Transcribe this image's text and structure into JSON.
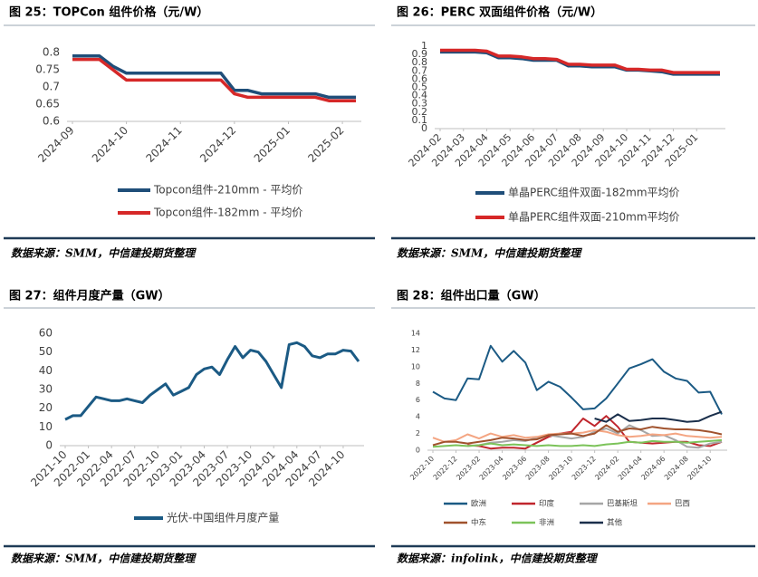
{
  "chart_data": [
    {
      "type": "line",
      "title": "图 25：TOPCon 组件价格（元/W）",
      "source": "数据来源：SMM，中信建投期货整理",
      "categories": [
        "2024-09",
        null,
        null,
        null,
        "2024-10",
        null,
        null,
        null,
        "2024-11",
        null,
        null,
        null,
        "2024-12",
        null,
        null,
        null,
        "2025-01",
        null,
        null,
        null,
        "2025-02",
        null
      ],
      "series": [
        {
          "name": "Topcon组件-210mm - 平均价",
          "color": "#1f4e79",
          "values": [
            0.79,
            0.79,
            0.79,
            0.76,
            0.74,
            0.74,
            0.74,
            0.74,
            0.74,
            0.74,
            0.74,
            0.74,
            0.69,
            0.69,
            0.68,
            0.68,
            0.68,
            0.68,
            0.68,
            0.67,
            0.67,
            0.67
          ]
        },
        {
          "name": "Topcon组件-182mm - 平均价",
          "color": "#d62828",
          "values": [
            0.78,
            0.78,
            0.78,
            0.75,
            0.72,
            0.72,
            0.72,
            0.72,
            0.72,
            0.72,
            0.72,
            0.72,
            0.68,
            0.67,
            0.67,
            0.67,
            0.67,
            0.67,
            0.67,
            0.66,
            0.66,
            0.66
          ]
        }
      ],
      "ylim": [
        0.6,
        0.8
      ],
      "yticks": [
        0.6,
        0.65,
        0.7,
        0.75,
        0.8
      ]
    },
    {
      "type": "line",
      "title": "图 26：PERC 双面组件价格（元/W）",
      "source": "数据来源：SMM，中信建投期货整理",
      "categories": [
        "2024-02",
        null,
        "2024-03",
        null,
        "2024-04",
        null,
        "2024-05",
        null,
        "2024-06",
        null,
        "2024-07",
        null,
        "2024-08",
        null,
        "2024-09",
        null,
        "2024-10",
        null,
        "2024-11",
        null,
        "2024-12",
        null,
        "2025-01",
        null,
        null
      ],
      "series": [
        {
          "name": "单晶PERC组件双面-182mm平均价",
          "color": "#1f4e79",
          "values": [
            0.93,
            0.93,
            0.93,
            0.93,
            0.92,
            0.86,
            0.86,
            0.85,
            0.83,
            0.83,
            0.83,
            0.76,
            0.76,
            0.75,
            0.75,
            0.75,
            0.71,
            0.71,
            0.7,
            0.69,
            0.66,
            0.66,
            0.66,
            0.66,
            0.66
          ]
        },
        {
          "name": "单晶PERC组件双面-210mm平均价",
          "color": "#d62828",
          "values": [
            0.95,
            0.95,
            0.95,
            0.95,
            0.94,
            0.88,
            0.88,
            0.87,
            0.85,
            0.85,
            0.84,
            0.78,
            0.78,
            0.77,
            0.77,
            0.77,
            0.72,
            0.72,
            0.71,
            0.71,
            0.68,
            0.68,
            0.68,
            0.68,
            0.68
          ]
        }
      ],
      "ylim": [
        0,
        1
      ],
      "yticks": [
        0,
        0.1,
        0.2,
        0.3,
        0.4,
        0.5,
        0.6,
        0.7,
        0.8,
        0.9,
        1
      ]
    },
    {
      "type": "line",
      "title": "图 27：组件月度产量（GW）",
      "source": "数据来源：SMM，中信建投期货整理",
      "categories": [
        "2021-10",
        null,
        null,
        "2022-01",
        null,
        null,
        "2022-04",
        null,
        null,
        "2022-07",
        null,
        null,
        "2022-10",
        null,
        null,
        "2023-01",
        null,
        null,
        "2023-04",
        null,
        null,
        "2023-07",
        null,
        null,
        "2023-10",
        null,
        null,
        "2024-01",
        null,
        null,
        "2024-04",
        null,
        null,
        "2024-07",
        null,
        null,
        "2024-10",
        null,
        null
      ],
      "series": [
        {
          "name": "光伏-中国组件月度产量",
          "color": "#1b5a84",
          "values": [
            14,
            16,
            16,
            21,
            26,
            25,
            24,
            24,
            25,
            24,
            23,
            27,
            30,
            33,
            27,
            29,
            31,
            38,
            41,
            42,
            38,
            46,
            53,
            47,
            51,
            50,
            45,
            38,
            31,
            54,
            55,
            53,
            48,
            47,
            49,
            49,
            51,
            50.5,
            45
          ]
        }
      ],
      "ylim": [
        0,
        60
      ],
      "yticks": [
        0,
        10,
        20,
        30,
        40,
        50,
        60
      ]
    },
    {
      "type": "line",
      "title": "图 28：组件出口量（GW）",
      "source": "数据来源：infolink，中信建投期货整理",
      "categories": [
        "2022-10",
        null,
        "2022-12",
        null,
        "2023-02",
        null,
        "2023-04",
        null,
        "2023-06",
        null,
        "2023-08",
        null,
        "2023-10",
        null,
        "2023-12",
        null,
        "2024-02",
        null,
        "2024-04",
        null,
        "2024-06",
        null,
        "2024-08",
        null,
        "2024-10",
        null
      ],
      "series": [
        {
          "name": "欧洲",
          "color": "#1b5a84",
          "values": [
            7,
            6.2,
            6,
            8.6,
            8.5,
            12.5,
            10.6,
            11.9,
            10.5,
            7.2,
            8.2,
            7.6,
            6.3,
            4.9,
            5,
            6.2,
            8,
            9.8,
            10.3,
            10.9,
            9.4,
            8.6,
            8.3,
            6.9,
            7,
            4.3
          ]
        },
        {
          "name": "印度",
          "color": "#c0262d",
          "values": [
            null,
            null,
            null,
            0.6,
            0.5,
            0.2,
            0.3,
            0.3,
            0.2,
            0.9,
            1.6,
            2.0,
            2.2,
            3.8,
            2.9,
            4.1,
            2.8,
            1.0,
            0.9,
            0.8,
            0.9,
            1.0,
            1.0,
            0.6,
            0.5,
            1.0
          ]
        },
        {
          "name": "巴基斯坦",
          "color": "#a6a6a6",
          "values": [
            null,
            null,
            null,
            0.5,
            0.6,
            0.9,
            1.0,
            1.2,
            1.1,
            1.5,
            1.8,
            1.6,
            1.4,
            1.6,
            2.2,
            2.6,
            2.0,
            3.0,
            2.4,
            1.7,
            1.8,
            1.2,
            0.4,
            0.3,
            0.8,
            1.0
          ]
        },
        {
          "name": "巴西",
          "color": "#f4a582",
          "values": [
            1.5,
            1.0,
            1.2,
            1.9,
            1.4,
            2.0,
            1.6,
            1.8,
            1.5,
            1.6,
            1.9,
            2.0,
            2.0,
            2.1,
            2.4,
            2.2,
            1.8,
            1.6,
            1.7,
            1.9,
            1.8,
            2.0,
            1.7,
            1.6,
            1.5,
            1.6
          ]
        },
        {
          "name": "中东",
          "color": "#a0522d",
          "values": [
            0.6,
            1.0,
            1.0,
            0.8,
            1.0,
            1.2,
            1.5,
            1.4,
            1.2,
            1.3,
            1.8,
            1.9,
            2.0,
            1.7,
            2.0,
            3.0,
            2.2,
            2.6,
            2.5,
            2.8,
            2.6,
            2.5,
            2.5,
            2.4,
            2.2,
            1.9
          ]
        },
        {
          "name": "非洲",
          "color": "#7cc35a",
          "values": [
            0.4,
            0.5,
            0.6,
            0.5,
            0.6,
            0.8,
            0.6,
            0.7,
            0.6,
            0.5,
            0.6,
            0.5,
            0.5,
            0.6,
            0.5,
            0.7,
            0.8,
            1.0,
            0.9,
            1.1,
            1.0,
            1.0,
            0.9,
            1.0,
            1.1,
            1.2
          ]
        },
        {
          "name": "其他",
          "color": "#1a2f4b",
          "values": [
            null,
            null,
            null,
            null,
            null,
            null,
            null,
            null,
            null,
            null,
            null,
            null,
            null,
            null,
            3.8,
            3.4,
            4.3,
            3.5,
            3.6,
            3.8,
            3.8,
            3.6,
            3.4,
            3.5,
            4.1,
            4.6
          ]
        }
      ],
      "ylim": [
        0,
        14
      ],
      "yticks": [
        0,
        2,
        4,
        6,
        8,
        10,
        12,
        14
      ]
    }
  ]
}
